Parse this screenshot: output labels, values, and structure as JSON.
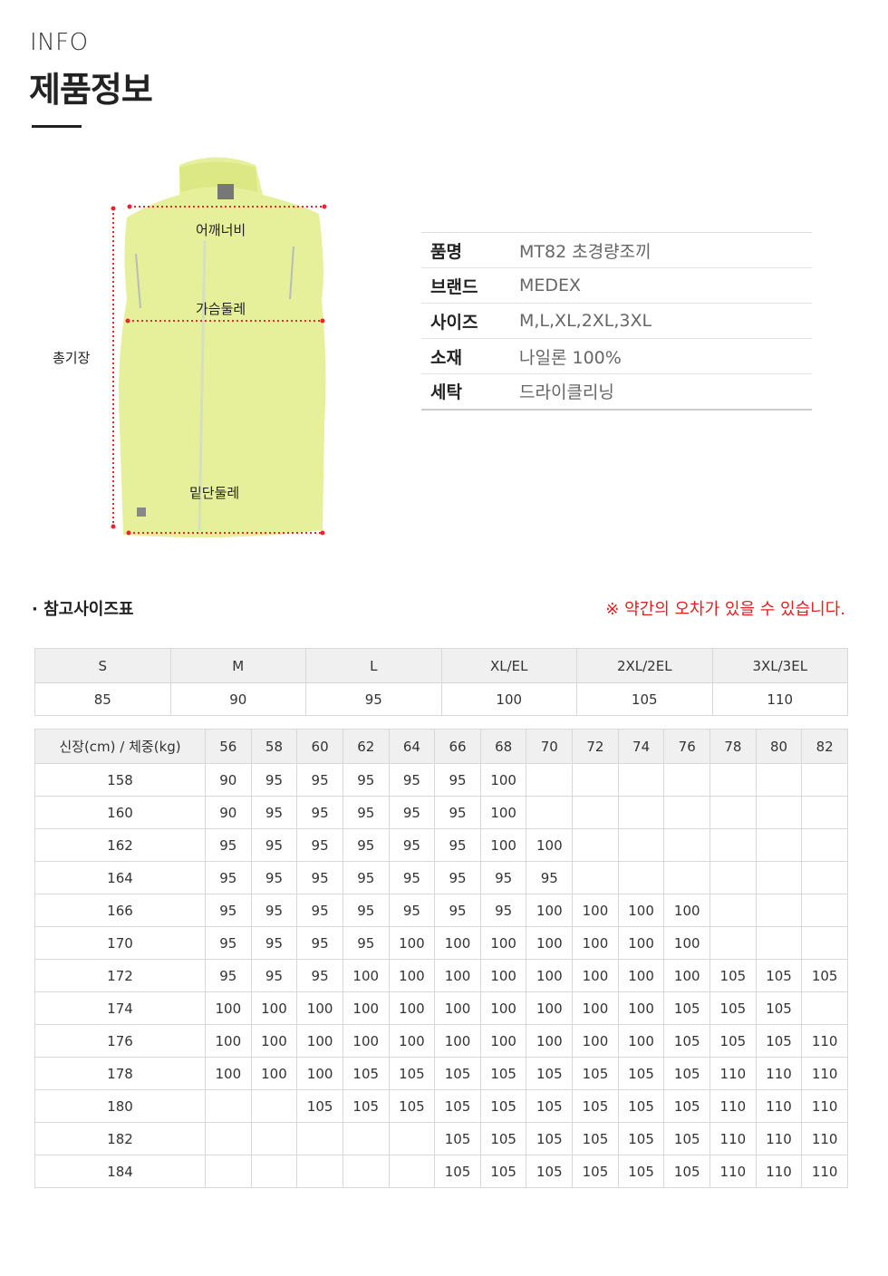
{
  "header": {
    "label_en": "INFO",
    "title": "제품정보"
  },
  "diagram": {
    "shoulder": "어깨너비",
    "chest": "가슴둘레",
    "hem": "밑단둘레",
    "length": "총기장",
    "vest_color": "#e6f09a",
    "measure_color": "#e8262b"
  },
  "spec": [
    {
      "key": "품명",
      "value": "MT82 초경량조끼"
    },
    {
      "key": "브랜드",
      "value": "MEDEX"
    },
    {
      "key": "사이즈",
      "value": "M,L,XL,2XL,3XL"
    },
    {
      "key": "소재",
      "value": "나일론 100%"
    },
    {
      "key": "세탁",
      "value": "드라이클리닝"
    }
  ],
  "reference": {
    "title": "· 참고사이즈표",
    "note": "※ 약간의 오차가 있을 수 있습니다."
  },
  "size_table": {
    "headers": [
      "S",
      "M",
      "L",
      "XL/EL",
      "2XL/2EL",
      "3XL/3EL"
    ],
    "values": [
      "85",
      "90",
      "95",
      "100",
      "105",
      "110"
    ]
  },
  "fit_table": {
    "corner": "신장(cm) / 체중(kg)",
    "weights": [
      "56",
      "58",
      "60",
      "62",
      "64",
      "66",
      "68",
      "70",
      "72",
      "74",
      "76",
      "78",
      "80",
      "82"
    ],
    "rows": [
      {
        "height": "158",
        "cells": [
          "90",
          "95",
          "95",
          "95",
          "95",
          "95",
          "100",
          "",
          "",
          "",
          "",
          "",
          "",
          ""
        ]
      },
      {
        "height": "160",
        "cells": [
          "90",
          "95",
          "95",
          "95",
          "95",
          "95",
          "100",
          "",
          "",
          "",
          "",
          "",
          "",
          ""
        ]
      },
      {
        "height": "162",
        "cells": [
          "95",
          "95",
          "95",
          "95",
          "95",
          "95",
          "100",
          "100",
          "",
          "",
          "",
          "",
          "",
          ""
        ]
      },
      {
        "height": "164",
        "cells": [
          "95",
          "95",
          "95",
          "95",
          "95",
          "95",
          "95",
          "95",
          "",
          "",
          "",
          "",
          "",
          ""
        ]
      },
      {
        "height": "166",
        "cells": [
          "95",
          "95",
          "95",
          "95",
          "95",
          "95",
          "95",
          "100",
          "100",
          "100",
          "100",
          "",
          "",
          ""
        ]
      },
      {
        "height": "170",
        "cells": [
          "95",
          "95",
          "95",
          "95",
          "100",
          "100",
          "100",
          "100",
          "100",
          "100",
          "100",
          "",
          "",
          ""
        ]
      },
      {
        "height": "172",
        "cells": [
          "95",
          "95",
          "95",
          "100",
          "100",
          "100",
          "100",
          "100",
          "100",
          "100",
          "100",
          "105",
          "105",
          "105"
        ]
      },
      {
        "height": "174",
        "cells": [
          "100",
          "100",
          "100",
          "100",
          "100",
          "100",
          "100",
          "100",
          "100",
          "100",
          "105",
          "105",
          "105",
          ""
        ]
      },
      {
        "height": "176",
        "cells": [
          "100",
          "100",
          "100",
          "100",
          "100",
          "100",
          "100",
          "100",
          "100",
          "100",
          "105",
          "105",
          "105",
          "110"
        ]
      },
      {
        "height": "178",
        "cells": [
          "100",
          "100",
          "100",
          "105",
          "105",
          "105",
          "105",
          "105",
          "105",
          "105",
          "105",
          "110",
          "110",
          "110"
        ]
      },
      {
        "height": "180",
        "cells": [
          "",
          "",
          "105",
          "105",
          "105",
          "105",
          "105",
          "105",
          "105",
          "105",
          "105",
          "110",
          "110",
          "110"
        ]
      },
      {
        "height": "182",
        "cells": [
          "",
          "",
          "",
          "",
          "",
          "105",
          "105",
          "105",
          "105",
          "105",
          "105",
          "110",
          "110",
          "110"
        ]
      },
      {
        "height": "184",
        "cells": [
          "",
          "",
          "",
          "",
          "",
          "105",
          "105",
          "105",
          "105",
          "105",
          "105",
          "110",
          "110",
          "110"
        ]
      }
    ]
  }
}
